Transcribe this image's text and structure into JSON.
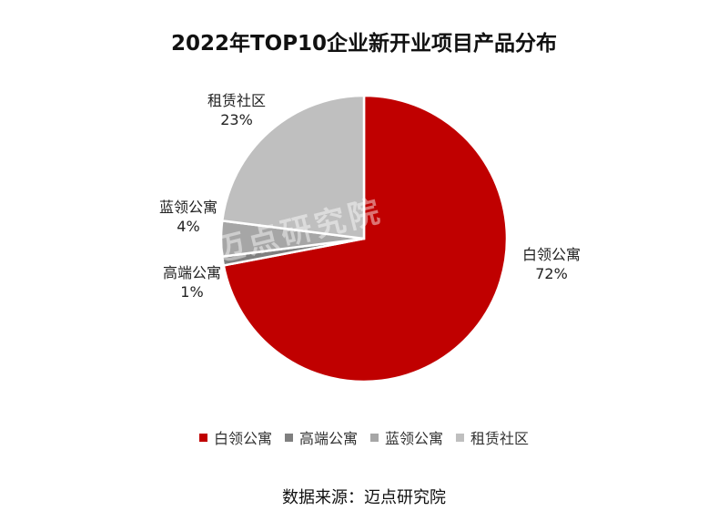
{
  "chart_data": {
    "type": "pie",
    "title": "2022年TOP10企业新开业项目产品分布",
    "categories": [
      "白领公寓",
      "高端公寓",
      "蓝领公寓",
      "租赁社区"
    ],
    "values": [
      72,
      1,
      4,
      23
    ],
    "labels_pct": [
      "72%",
      "1%",
      "4%",
      "23%"
    ],
    "colors": [
      "#c00000",
      "#7f7f7f",
      "#a6a6a6",
      "#bfbfbf"
    ],
    "legend_position": "bottom"
  },
  "source": "数据来源：迈点研究院",
  "watermark": "迈点研究院"
}
